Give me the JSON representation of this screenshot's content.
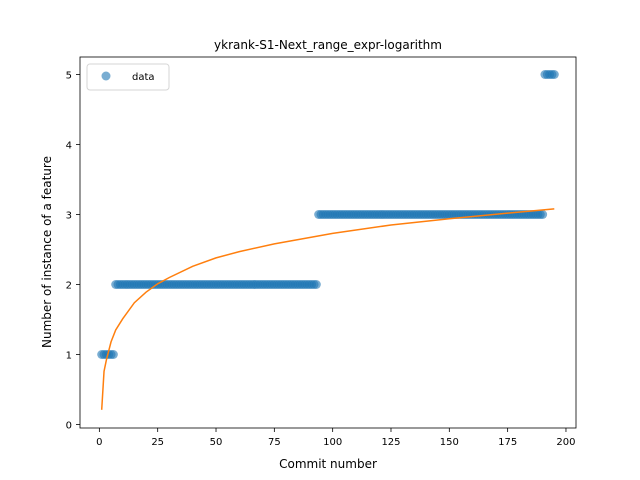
{
  "chart_data": {
    "type": "scatter",
    "title": "ykrank-S1-Next_range_expr-logarithm",
    "xlabel": "Commit number",
    "ylabel": "Number of instance of a feature",
    "xlim": [
      -8.3,
      204.3
    ],
    "ylim": [
      -0.05,
      5.25
    ],
    "xticks": [
      0,
      25,
      50,
      75,
      100,
      125,
      150,
      175,
      200
    ],
    "yticks": [
      0,
      1,
      2,
      3,
      4,
      5
    ],
    "grid": false,
    "legend": {
      "position": "top-left",
      "entries": [
        "data"
      ]
    },
    "colors": {
      "data": "#1f77b4",
      "fit": "#ff7f0e"
    },
    "series": [
      {
        "name": "data",
        "kind": "scatter",
        "segments": [
          {
            "x_start": 1,
            "x_end": 6,
            "y": 1
          },
          {
            "x_start": 7,
            "x_end": 93,
            "y": 2
          },
          {
            "x_start": 94,
            "x_end": 190,
            "y": 3
          },
          {
            "x_start": 191,
            "x_end": 195,
            "y": 5
          }
        ]
      },
      {
        "kind": "line",
        "x": [
          1,
          2,
          3,
          5,
          7,
          10,
          15,
          20,
          25,
          30,
          40,
          50,
          60,
          75,
          100,
          125,
          150,
          175,
          195
        ],
        "y": [
          0.21,
          0.76,
          0.92,
          1.18,
          1.35,
          1.51,
          1.74,
          1.89,
          2.01,
          2.1,
          2.26,
          2.38,
          2.47,
          2.58,
          2.73,
          2.85,
          2.94,
          3.02,
          3.08
        ]
      }
    ]
  }
}
